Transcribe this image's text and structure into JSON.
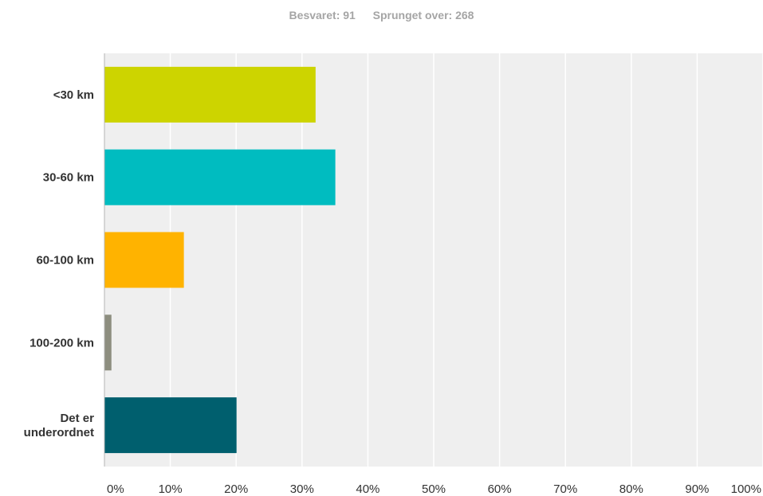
{
  "summary": {
    "answered_label": "Besvaret:",
    "answered_value": "91",
    "skipped_label": "Sprunget over:",
    "skipped_value": "268"
  },
  "colors": {
    "plot_background": "#efefef",
    "gridline": "#ffffff",
    "axis": "#b5b5b5"
  },
  "chart_data": {
    "type": "bar",
    "orientation": "horizontal",
    "categories": [
      [
        "<30 km"
      ],
      [
        "30-60 km"
      ],
      [
        "60-100 km"
      ],
      [
        "100-200 km"
      ],
      [
        "Det er",
        "underordnet"
      ]
    ],
    "values": [
      32,
      35,
      12,
      1,
      20
    ],
    "colors": [
      "#cdd400",
      "#00bcc0",
      "#ffb300",
      "#8d8e7f",
      "#005f6e"
    ],
    "xlim": [
      0,
      100
    ],
    "xticks": [
      "0%",
      "10%",
      "20%",
      "30%",
      "40%",
      "50%",
      "60%",
      "70%",
      "80%",
      "90%",
      "100%"
    ],
    "grid": true,
    "title": "",
    "xlabel": "",
    "ylabel": ""
  }
}
